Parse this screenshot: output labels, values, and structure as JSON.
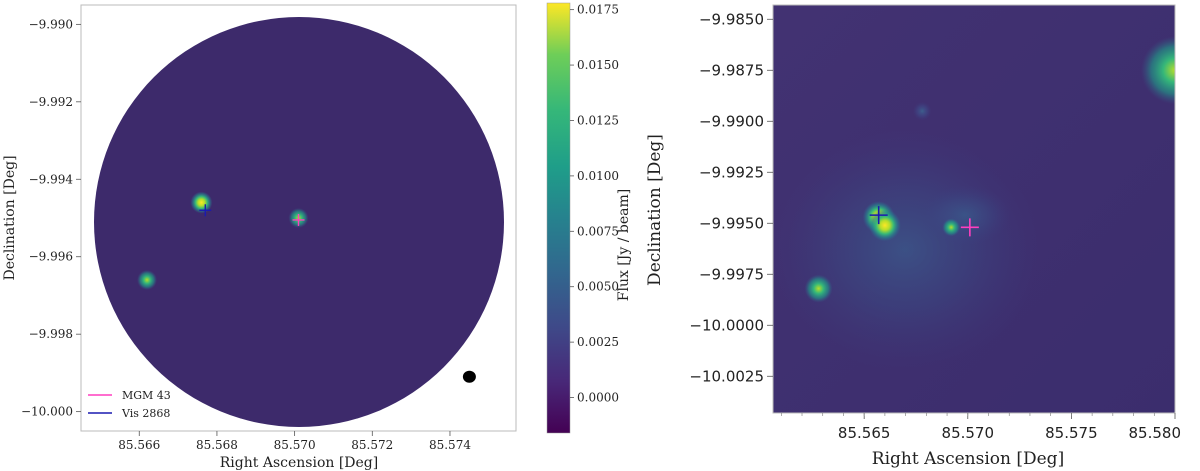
{
  "chart_data": [
    {
      "type": "heatmap",
      "xlabel": "Right Ascension [Deg]",
      "ylabel": "Declination [Deg]",
      "xlim": [
        85.5645,
        85.5757
      ],
      "ylim": [
        -10.0005,
        -9.9895
      ],
      "xticks": [
        85.566,
        85.568,
        85.57,
        85.572,
        85.574
      ],
      "xtick_labels": [
        "85.566",
        "85.568",
        "85.570",
        "85.572",
        "85.574"
      ],
      "yticks": [
        -9.99,
        -9.992,
        -9.994,
        -9.996,
        -9.998,
        -10.0
      ],
      "ytick_labels": [
        "−9.990",
        "−9.992",
        "−9.994",
        "−9.996",
        "−9.998",
        "−10.000"
      ],
      "colormap": "viridis",
      "background_color": "#3d2a6b",
      "sources": [
        {
          "x": 85.5676,
          "y": -9.9946,
          "flux": 0.0175
        },
        {
          "x": 85.5701,
          "y": -9.995,
          "flux": 0.012
        },
        {
          "x": 85.5662,
          "y": -9.9966,
          "flux": 0.014
        }
      ],
      "beam": {
        "x": 85.5745,
        "y": -9.9991
      },
      "markers": [
        {
          "name": "MGM 43",
          "x": 85.5701,
          "y": -9.99505,
          "color": "#ff3fbf"
        },
        {
          "name": "Vis 2868",
          "x": 85.5677,
          "y": -9.9948,
          "color": "#1a1ab0"
        }
      ],
      "legend": [
        {
          "label": "MGM 43",
          "color": "#ff3fbf"
        },
        {
          "label": "Vis 2868",
          "color": "#1a1ab0"
        }
      ],
      "legend_position": "lower-left",
      "grid": false
    },
    {
      "type": "colorbar",
      "label": "Flux [Jy / beam]",
      "range": [
        -0.0016,
        0.0178
      ],
      "ticks": [
        0.0175,
        0.015,
        0.0125,
        0.01,
        0.0075,
        0.005,
        0.0025,
        0.0
      ],
      "tick_labels": [
        "0.0175",
        "0.0150",
        "0.0125",
        "0.0100",
        "0.0075",
        "0.0050",
        "0.0025",
        "0.0000"
      ],
      "colormap": "viridis"
    },
    {
      "type": "heatmap",
      "xlabel": "Right Ascension [Deg]",
      "ylabel": "Declination [Deg]",
      "xlim": [
        85.5606,
        85.58
      ],
      "ylim": [
        -10.0043,
        -9.9843
      ],
      "xticks": [
        85.565,
        85.57,
        85.575,
        85.58
      ],
      "xtick_labels": [
        "85.565",
        "85.570",
        "85.575",
        "85.580"
      ],
      "yticks": [
        -9.985,
        -9.9875,
        -9.99,
        -9.9925,
        -9.995,
        -9.9975,
        -10.0,
        -10.0025
      ],
      "ytick_labels": [
        "−9.9850",
        "−9.9875",
        "−9.9900",
        "−9.9925",
        "−9.9950",
        "−9.9975",
        "−10.0000",
        "−10.0025"
      ],
      "colormap": "viridis",
      "sources": [
        {
          "x": 85.5657,
          "y": -9.9947,
          "flux": 0.0175
        },
        {
          "x": 85.566,
          "y": -9.9951,
          "flux": 0.0175
        },
        {
          "x": 85.5628,
          "y": -9.9982,
          "flux": 0.014
        },
        {
          "x": 85.5692,
          "y": -9.9952,
          "flux": 0.008
        },
        {
          "x": 85.5678,
          "y": -9.9895,
          "flux": 0.004
        },
        {
          "x": 85.58,
          "y": -9.9875,
          "flux": 0.012
        }
      ],
      "markers": [
        {
          "name": "MGM 43",
          "x": 85.5701,
          "y": -9.9952,
          "color": "#ff3fbf"
        },
        {
          "name": "Vis 2868",
          "x": 85.5657,
          "y": -9.9946,
          "color": "#1a1ab0"
        }
      ]
    }
  ]
}
